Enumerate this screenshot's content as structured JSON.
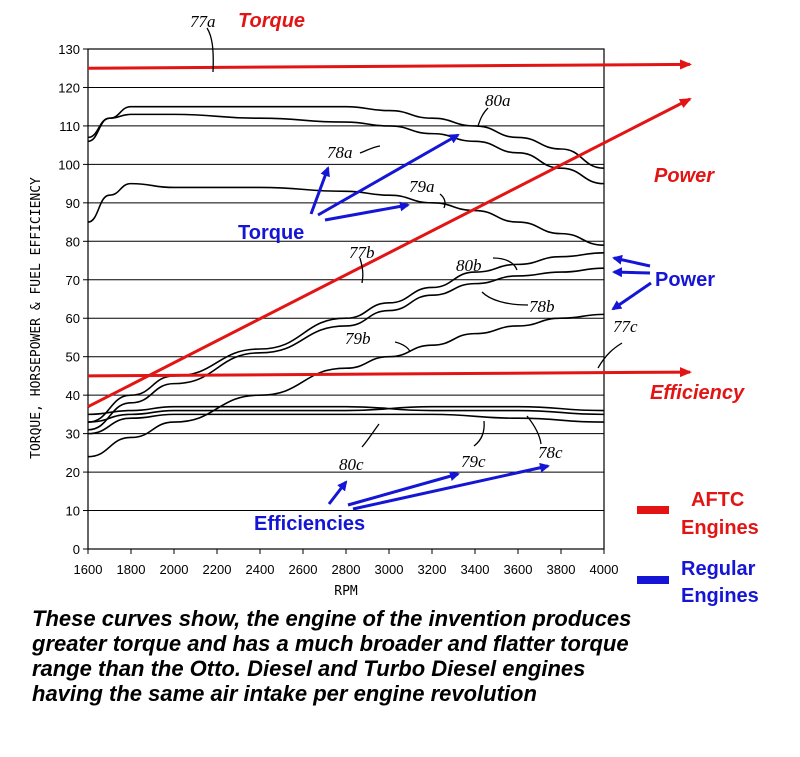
{
  "colors": {
    "red": "#e31414",
    "blue": "#1515d6",
    "black": "#000000"
  },
  "chart_data": {
    "type": "line",
    "xlabel": "RPM",
    "ylabel": "TORQUE, HORSEPOWER & FUEL EFFICIENCY",
    "xlim": [
      1600,
      4000
    ],
    "ylim": [
      0,
      130
    ],
    "x_ticks": [
      "1600",
      "1800",
      "2000",
      "2200",
      "2400",
      "2600",
      "2800",
      "3000",
      "3200",
      "3400",
      "3600",
      "3800",
      "4000"
    ],
    "y_ticks": [
      "0",
      "10",
      "20",
      "30",
      "40",
      "50",
      "60",
      "70",
      "80",
      "90",
      "100",
      "110",
      "120",
      "130"
    ],
    "series": [
      {
        "name": "78a",
        "color": "black",
        "x": [
          1600,
          1700,
          1800,
          2000,
          2400,
          2800,
          3000,
          3200,
          3400,
          3600,
          3800,
          4000
        ],
        "y": [
          107,
          112,
          113,
          113,
          112,
          111,
          110,
          108,
          106,
          103,
          99,
          95
        ]
      },
      {
        "name": "80a",
        "color": "black",
        "x": [
          1600,
          1700,
          1800,
          2000,
          2400,
          2800,
          3000,
          3200,
          3400,
          3600,
          3800,
          4000
        ],
        "y": [
          106,
          112,
          115,
          115,
          115,
          115,
          114,
          112,
          110,
          107,
          104,
          99
        ]
      },
      {
        "name": "79a",
        "color": "black",
        "x": [
          1600,
          1700,
          1800,
          2000,
          2400,
          2800,
          3000,
          3200,
          3400,
          3600,
          3800,
          4000
        ],
        "y": [
          85,
          92,
          95,
          94,
          94,
          93,
          92,
          90,
          88,
          85,
          82,
          79
        ]
      },
      {
        "name": "80b",
        "color": "black",
        "x": [
          1600,
          1800,
          2000,
          2400,
          2800,
          3000,
          3200,
          3400,
          3600,
          3800,
          4000
        ],
        "y": [
          33,
          40,
          45,
          52,
          60,
          64,
          68,
          72,
          74,
          76,
          77
        ]
      },
      {
        "name": "78b",
        "color": "black",
        "x": [
          1600,
          1800,
          2000,
          2400,
          2800,
          3000,
          3200,
          3400,
          3600,
          3800,
          4000
        ],
        "y": [
          31,
          38,
          43,
          51,
          58,
          62,
          66,
          69,
          71,
          72,
          73
        ]
      },
      {
        "name": "79b",
        "color": "black",
        "x": [
          1600,
          1800,
          2000,
          2400,
          2800,
          3000,
          3200,
          3400,
          3600,
          3800,
          4000
        ],
        "y": [
          24,
          29,
          33,
          40,
          47,
          50,
          53,
          56,
          58,
          60,
          61
        ]
      },
      {
        "name": "80c",
        "color": "black",
        "x": [
          1600,
          1800,
          2000,
          2400,
          2800,
          3200,
          3600,
          4000
        ],
        "y": [
          35,
          36,
          37,
          37,
          37,
          36,
          36,
          35
        ]
      },
      {
        "name": "79c",
        "color": "black",
        "x": [
          1600,
          1800,
          2000,
          2400,
          2800,
          3200,
          3600,
          4000
        ],
        "y": [
          33,
          35,
          36,
          36,
          36,
          37,
          37,
          36
        ]
      },
      {
        "name": "78c",
        "color": "black",
        "x": [
          1600,
          1800,
          2000,
          2400,
          2800,
          3200,
          3600,
          4000
        ],
        "y": [
          30,
          34,
          35,
          35,
          35,
          35,
          34,
          33
        ]
      },
      {
        "name": "Torque (AFTC)",
        "color": "red",
        "x": [
          1600,
          4400
        ],
        "y": [
          125,
          126
        ]
      },
      {
        "name": "Power (AFTC)",
        "color": "red",
        "x": [
          1600,
          4400
        ],
        "y": [
          37,
          117
        ]
      },
      {
        "name": "Efficiency (AFTC)",
        "color": "red",
        "x": [
          1600,
          4400
        ],
        "y": [
          45,
          46
        ]
      }
    ],
    "annotations": {
      "label_77a": "77a",
      "label_torque": "Torque",
      "label_78a": "78a",
      "label_80a": "80a",
      "label_79a": "79a",
      "label_power": "Power",
      "label_77b": "77b",
      "label_80b": "80b",
      "label_78b": "78b",
      "label_79b": "79b",
      "label_77c": "77c",
      "label_efficiency": "Efficiency",
      "label_80c": "80c",
      "label_79c": "79c",
      "label_78c": "78c",
      "blue_torque": "Torque",
      "blue_power": "Power",
      "blue_efficiencies": "Efficiencies"
    }
  },
  "legend": {
    "aftc_line1": "AFTC",
    "aftc_line2": "Engines",
    "regular_line1": "Regular",
    "regular_line2": "Engines"
  },
  "caption": {
    "line1": "These curves show, the engine of the invention produces",
    "line2": "greater torque and has a much broader and flatter torque",
    "line3": "range than the Otto. Diesel and Turbo Diesel engines",
    "line4": "having the same air intake per engine revolution"
  }
}
